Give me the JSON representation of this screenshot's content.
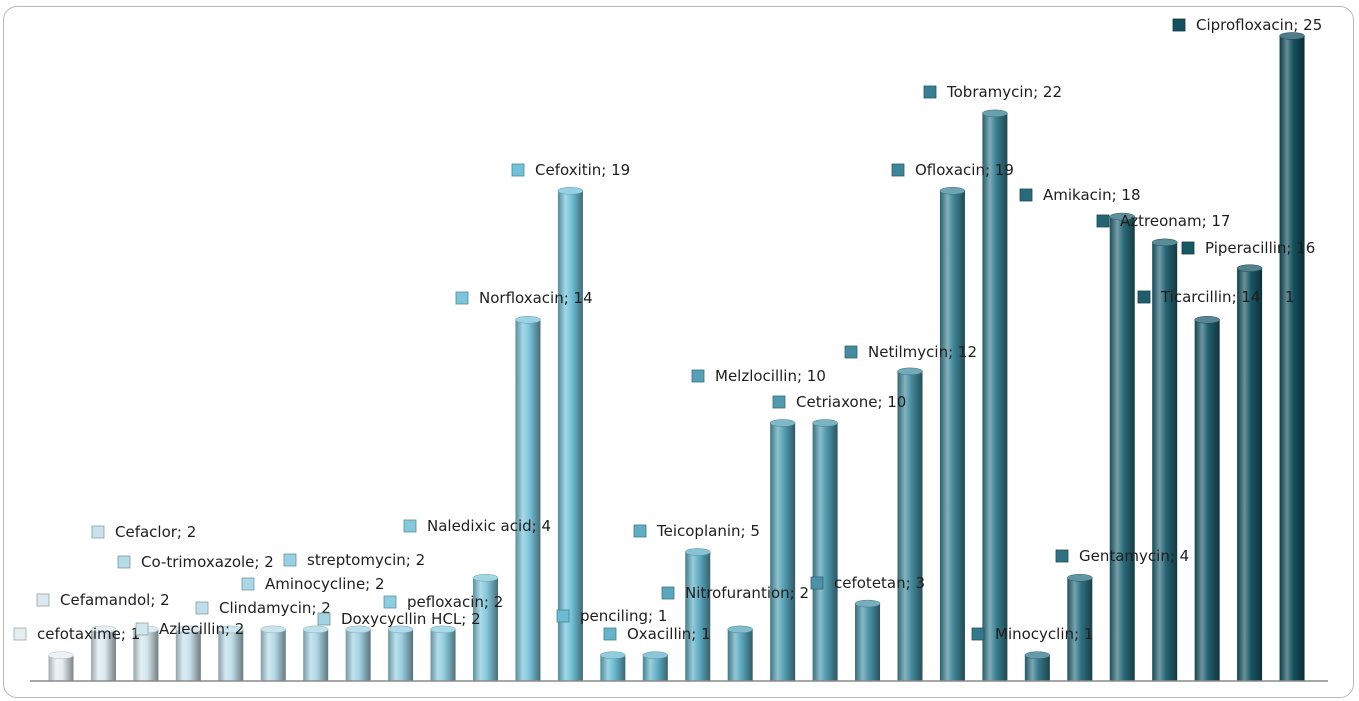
{
  "chart_data": {
    "type": "bar",
    "title": "",
    "xlabel": "",
    "ylabel": "",
    "ylim": [
      0,
      25
    ],
    "grid": false,
    "legend": "none",
    "label_format": "category; value",
    "categories": [
      "cefotaxime",
      "Cefamandol",
      "Azlecillin",
      "Cefaclor",
      "Clindamycin",
      "Co-trimoxazole",
      "Aminocycline",
      "Doxycycllin HCL",
      "streptomycin",
      "pefloxacin",
      "Naledixic acid",
      "Norfloxacin",
      "Cefoxitin",
      "penciling",
      "Oxacillin",
      "Teicoplanin",
      "Nitrofurantion",
      "Melzlocillin",
      "Cetriaxone",
      "cefotetan",
      "Netilmycin",
      "Ofloxacin",
      "Tobramycin",
      "Minocyclin",
      "Gentamycin",
      "Amikacin",
      "Aztreonam",
      "Ticarcillin",
      "Piperacillin",
      "Ciprofloxacin"
    ],
    "values": [
      1,
      2,
      2,
      2,
      2,
      2,
      2,
      2,
      2,
      2,
      4,
      14,
      19,
      1,
      1,
      5,
      2,
      10,
      10,
      3,
      12,
      19,
      22,
      1,
      4,
      18,
      17,
      14,
      16,
      25
    ],
    "extra_labels": [
      "1"
    ],
    "colors": {
      "light": "#e6edf1",
      "mid": "#6fc0d8",
      "dark": "#14505e",
      "axis": "#8a8a8a",
      "frame": "#b9b9b9"
    }
  }
}
